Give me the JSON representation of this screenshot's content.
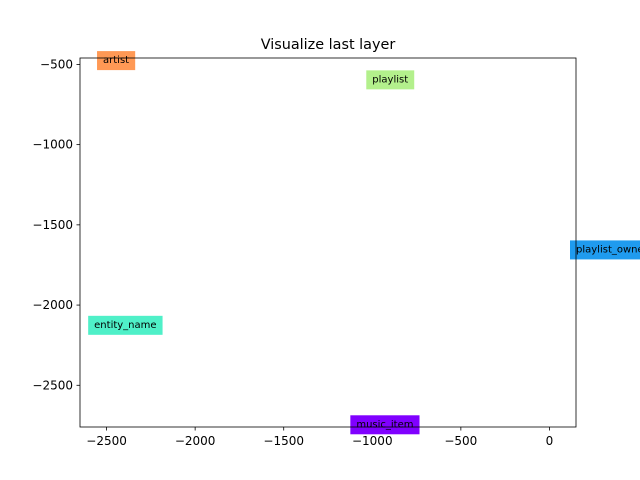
{
  "chart_data": {
    "type": "scatter",
    "title": "Visualize last layer",
    "xlabel": "",
    "ylabel": "",
    "xlim": [
      -2650,
      150
    ],
    "ylim": [
      -2760,
      -460
    ],
    "xticks": [
      -2500,
      -2000,
      -1500,
      -1000,
      -500,
      0
    ],
    "yticks": [
      -500,
      -1000,
      -1500,
      -2000,
      -2500
    ],
    "xtick_labels": [
      "−2500",
      "−2000",
      "−1500",
      "−1000",
      "−500",
      "0"
    ],
    "ytick_labels": [
      "−500",
      "−1000",
      "−1500",
      "−2000",
      "−2500"
    ],
    "grid": false,
    "points": [
      {
        "label": "artist",
        "x": -2520,
        "y": -470,
        "color": "#ff9955"
      },
      {
        "label": "playlist",
        "x": -1000,
        "y": -590,
        "color": "#b3f08c"
      },
      {
        "label": "playlist_owner",
        "x": 150,
        "y": -1650,
        "color": "#1f9bef"
      },
      {
        "label": "entity_name",
        "x": -2570,
        "y": -2120,
        "color": "#4ff0c8"
      },
      {
        "label": "music_item",
        "x": -1090,
        "y": -2740,
        "color": "#8000ff"
      }
    ]
  }
}
